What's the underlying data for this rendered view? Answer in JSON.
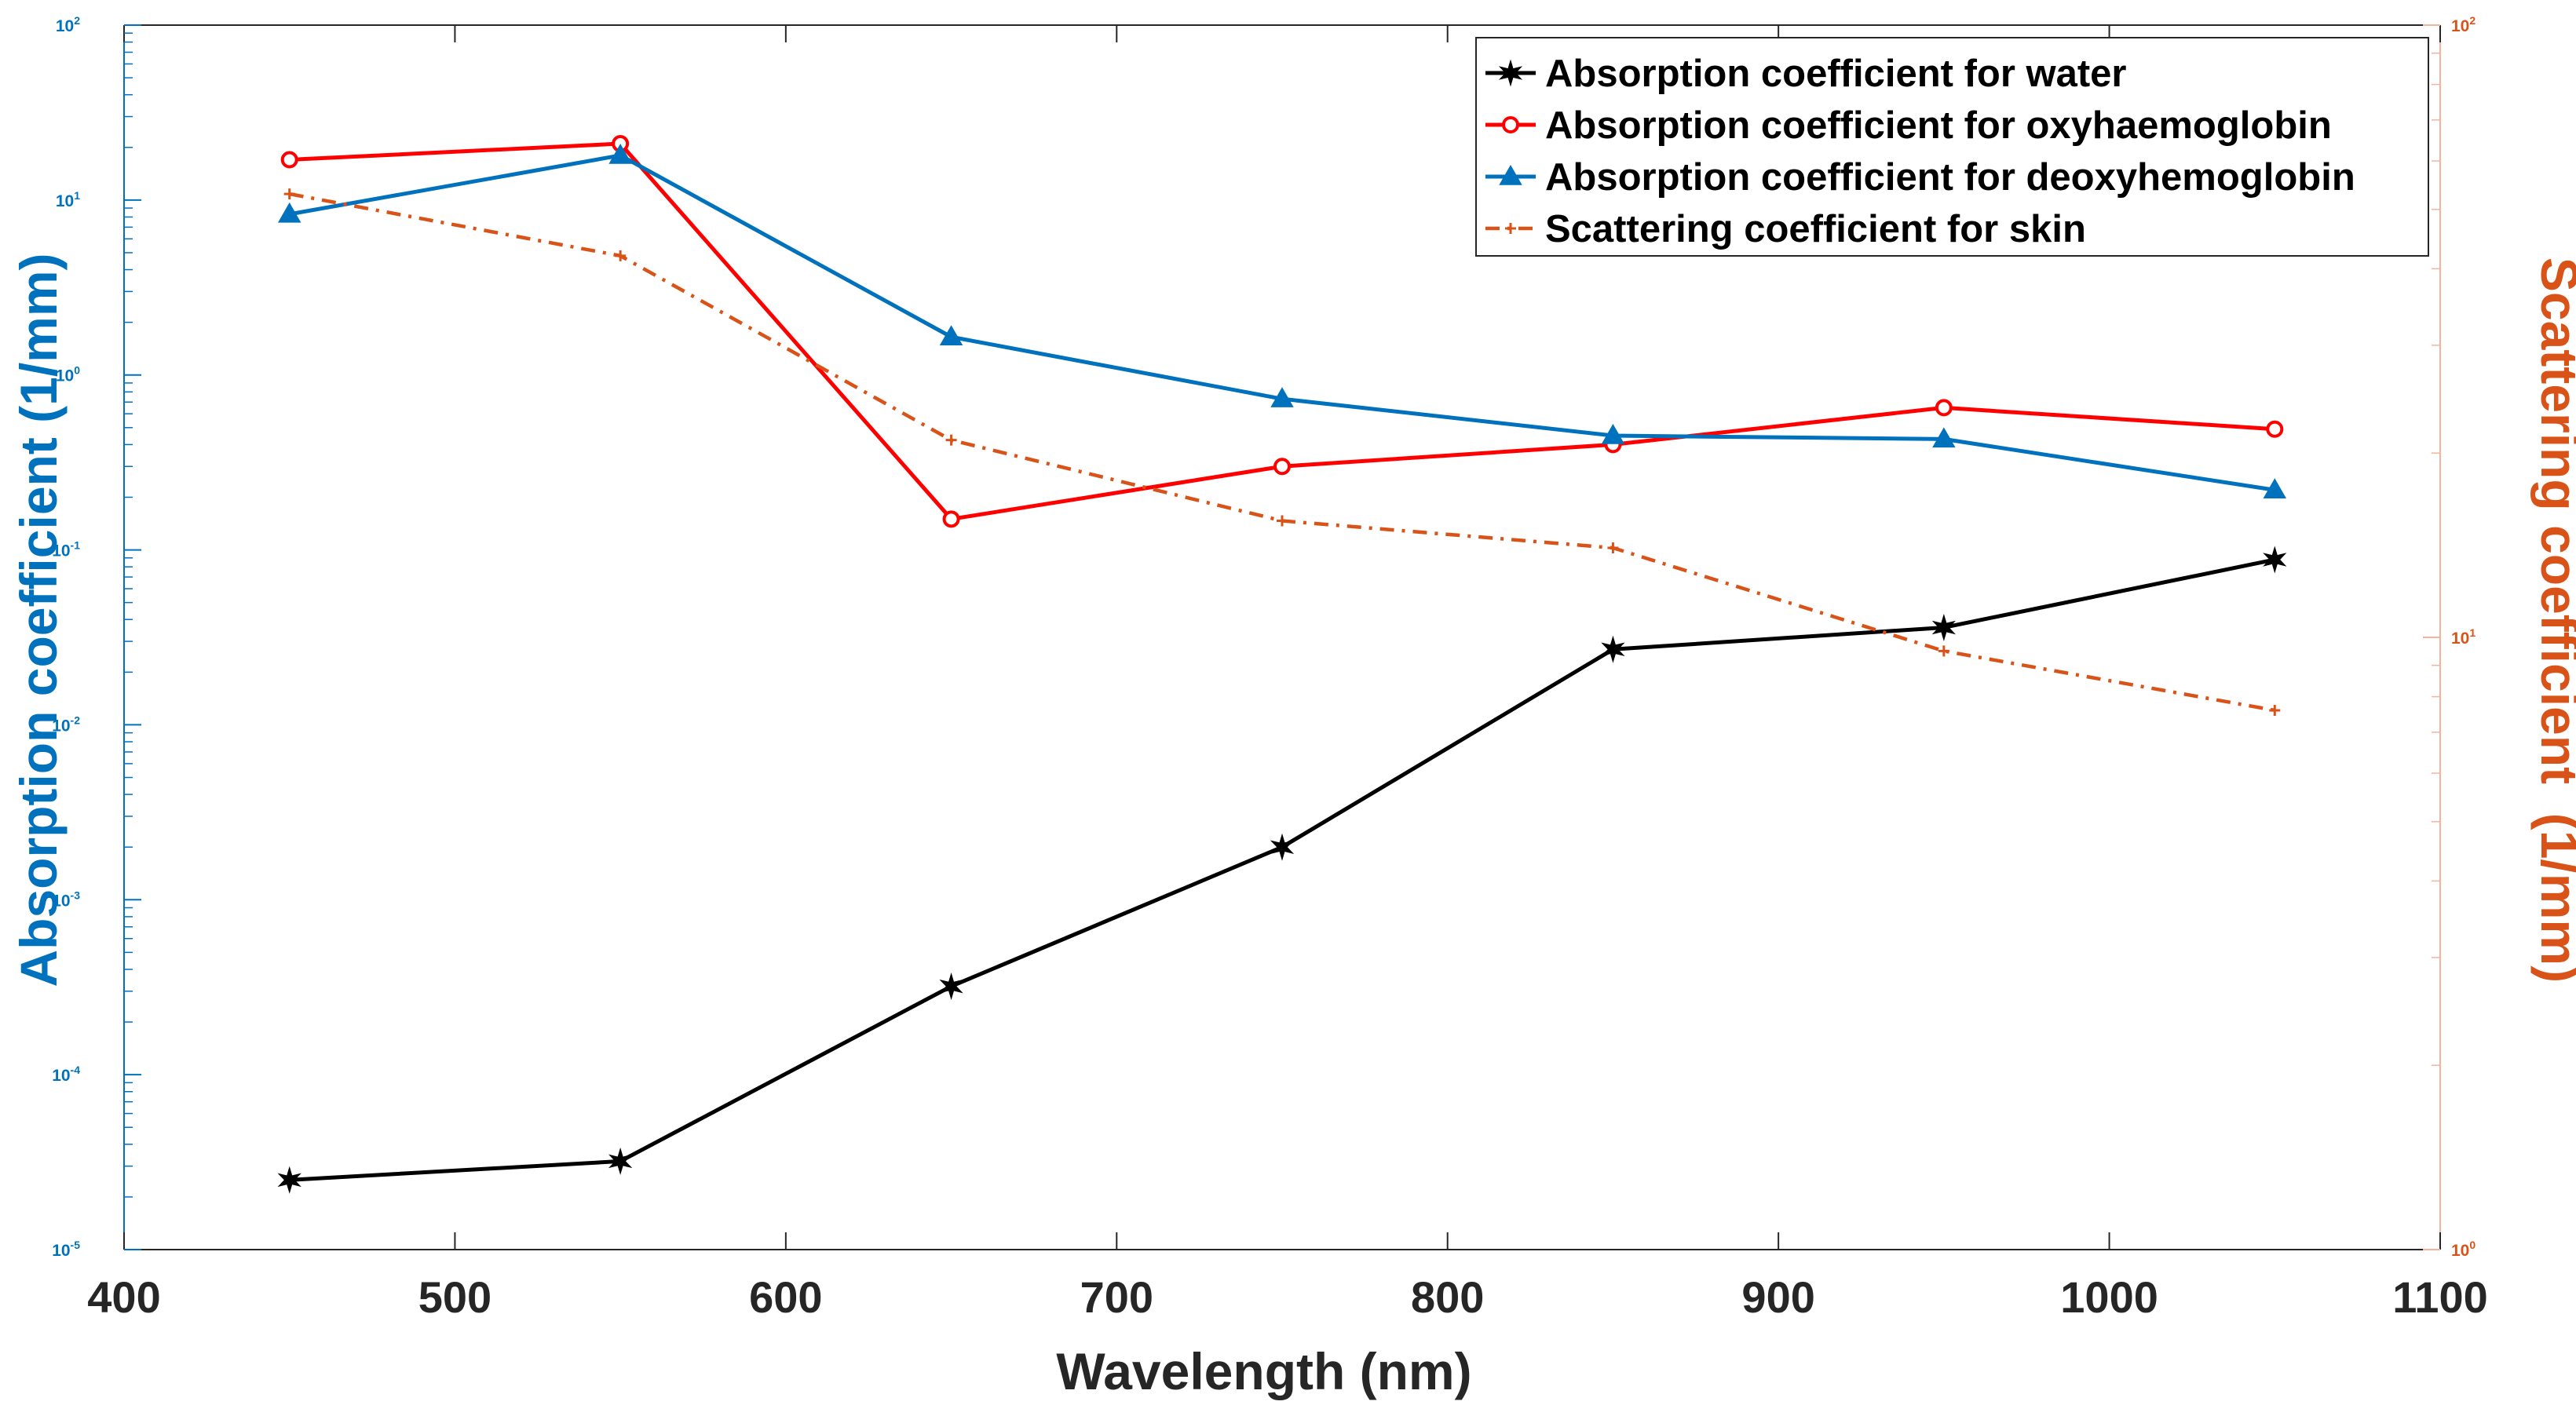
{
  "chart_data": {
    "type": "line",
    "xlabel": "Wavelength (nm)",
    "ylabel_left": "Absorption coefficient (1/mm)",
    "ylabel_right": "Scattering coefficient  (1/mm)",
    "xlim": [
      400,
      1100
    ],
    "xticks": [
      "400",
      "500",
      "600",
      "700",
      "800",
      "900",
      "1000",
      "1100"
    ],
    "ylim_left": [
      1e-05,
      100
    ],
    "ylim_right": [
      1,
      100
    ],
    "yscale": "log",
    "yticks_left": [
      {
        "base": "10",
        "exp": "2"
      },
      {
        "base": "10",
        "exp": "1"
      },
      {
        "base": "10",
        "exp": "0"
      },
      {
        "base": "10",
        "exp": "-1"
      },
      {
        "base": "10",
        "exp": "-2"
      },
      {
        "base": "10",
        "exp": "-3"
      },
      {
        "base": "10",
        "exp": "-4"
      },
      {
        "base": "10",
        "exp": "-5"
      }
    ],
    "yticks_right": [
      {
        "base": "10",
        "exp": "2"
      },
      {
        "base": "10",
        "exp": "1"
      },
      {
        "base": "10",
        "exp": "0"
      }
    ],
    "x": [
      450,
      550,
      650,
      750,
      850,
      950,
      1050
    ],
    "series": [
      {
        "name": "Absorption coefficient for water",
        "axis": "left",
        "color": "#000000",
        "marker": "star",
        "linestyle": "solid",
        "values": [
          2.5e-05,
          3.2e-05,
          0.00032,
          0.002,
          0.027,
          0.036,
          0.088
        ]
      },
      {
        "name": "Absorption coefficient for oxyhaemoglobin",
        "axis": "left",
        "color": "#ff0000",
        "marker": "circle",
        "linestyle": "solid",
        "values": [
          17,
          21,
          0.15,
          0.3,
          0.4,
          0.65,
          0.49
        ]
      },
      {
        "name": "Absorption coefficient for deoxyhemoglobin",
        "axis": "left",
        "color": "#0072bd",
        "marker": "triangle",
        "linestyle": "solid",
        "values": [
          8.3,
          18,
          1.65,
          0.73,
          0.45,
          0.43,
          0.22
        ]
      },
      {
        "name": "Scattering coefficient for skin",
        "axis": "right",
        "color": "#d95319",
        "marker": "plus",
        "linestyle": "dashdot",
        "values": [
          53,
          42,
          21,
          15.5,
          14,
          9.5,
          7.6
        ]
      }
    ],
    "legend_position": "top-right",
    "grid": false
  },
  "colors": {
    "left_axis": "#0072bd",
    "right_axis": "#d95319",
    "right_axis_light": "#f4b49c",
    "frame": "#262626"
  }
}
